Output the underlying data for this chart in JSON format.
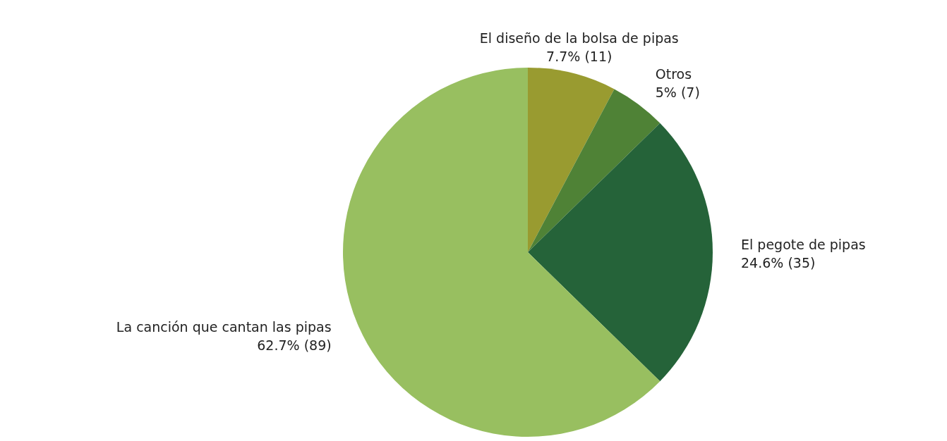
{
  "chart_data": {
    "type": "pie",
    "categories": [
      "El diseño de la bolsa de pipas",
      "Otros",
      "El pegote de pipas",
      "La canción que cantan las pipas"
    ],
    "values": [
      11,
      7,
      35,
      89
    ],
    "value_labels": [
      "7.7% (11)",
      "5% (7)",
      "24.6% (35)",
      "62.7% (89)"
    ],
    "colors": [
      "#999b30",
      "#4f8236",
      "#256339",
      "#98bf60"
    ]
  }
}
